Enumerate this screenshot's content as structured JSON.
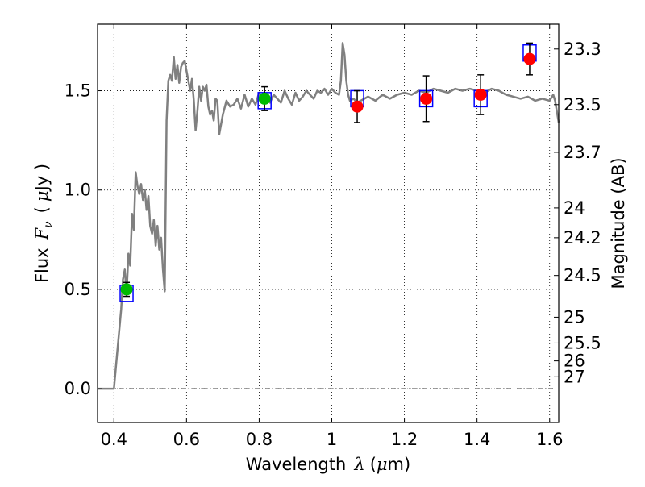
{
  "chart_data": {
    "type": "scatter",
    "xlabel_text": "Wavelength",
    "xlabel_symbol": "λ",
    "xlabel_unit_open": "(",
    "xlabel_unit_mu": "μ",
    "xlabel_unit_rest": "m)",
    "ylabel_text": "Flux",
    "ylabel_symbol": "F",
    "ylabel_sub": "ν",
    "ylabel_unit_open": "(",
    "ylabel_unit_mu": "μ",
    "ylabel_unit_rest": "Jy )",
    "y2label": "Magnitude (AB)",
    "xlim": [
      0.355,
      1.625
    ],
    "ylim": [
      -0.17,
      1.835
    ],
    "grid": true,
    "x_ticks": [
      0.4,
      0.6,
      0.8,
      1.0,
      1.2,
      1.4,
      1.6
    ],
    "x_tick_labels": [
      "0.4",
      "0.6",
      "0.8",
      "1",
      "1.2",
      "1.4",
      "1.6"
    ],
    "y_ticks": [
      0.0,
      0.5,
      1.0,
      1.5
    ],
    "y_tick_labels": [
      "0.0",
      "0.5",
      "1.0",
      "1.5"
    ],
    "y2_ticks": [
      {
        "label": "23.3",
        "flux": 1.71
      },
      {
        "label": "23.5",
        "flux": 1.43
      },
      {
        "label": "23.7",
        "flux": 1.19
      },
      {
        "label": "24",
        "flux": 0.91
      },
      {
        "label": "24.2",
        "flux": 0.76
      },
      {
        "label": "24.5",
        "flux": 0.57
      },
      {
        "label": "25",
        "flux": 0.36
      },
      {
        "label": "25.5",
        "flux": 0.23
      },
      {
        "label": "26",
        "flux": 0.14
      },
      {
        "label": "27",
        "flux": 0.06
      }
    ],
    "zero_line": 0.0,
    "model_color": "#808080",
    "model_spectrum": [
      [
        0.355,
        0.0
      ],
      [
        0.4,
        0.0
      ],
      [
        0.41,
        0.2
      ],
      [
        0.42,
        0.4
      ],
      [
        0.425,
        0.55
      ],
      [
        0.43,
        0.6
      ],
      [
        0.435,
        0.48
      ],
      [
        0.44,
        0.68
      ],
      [
        0.445,
        0.62
      ],
      [
        0.45,
        0.88
      ],
      [
        0.455,
        0.8
      ],
      [
        0.46,
        1.09
      ],
      [
        0.465,
        1.02
      ],
      [
        0.47,
        0.98
      ],
      [
        0.475,
        1.03
      ],
      [
        0.48,
        0.95
      ],
      [
        0.485,
        1.0
      ],
      [
        0.49,
        0.9
      ],
      [
        0.495,
        0.97
      ],
      [
        0.5,
        0.82
      ],
      [
        0.505,
        0.78
      ],
      [
        0.51,
        0.85
      ],
      [
        0.515,
        0.72
      ],
      [
        0.52,
        0.82
      ],
      [
        0.525,
        0.7
      ],
      [
        0.53,
        0.76
      ],
      [
        0.535,
        0.6
      ],
      [
        0.54,
        0.49
      ],
      [
        0.545,
        1.35
      ],
      [
        0.55,
        1.55
      ],
      [
        0.555,
        1.58
      ],
      [
        0.56,
        1.55
      ],
      [
        0.565,
        1.67
      ],
      [
        0.57,
        1.56
      ],
      [
        0.575,
        1.63
      ],
      [
        0.58,
        1.54
      ],
      [
        0.585,
        1.62
      ],
      [
        0.59,
        1.64
      ],
      [
        0.595,
        1.65
      ],
      [
        0.6,
        1.6
      ],
      [
        0.61,
        1.5
      ],
      [
        0.615,
        1.56
      ],
      [
        0.62,
        1.45
      ],
      [
        0.625,
        1.3
      ],
      [
        0.63,
        1.4
      ],
      [
        0.635,
        1.52
      ],
      [
        0.64,
        1.45
      ],
      [
        0.645,
        1.52
      ],
      [
        0.65,
        1.5
      ],
      [
        0.655,
        1.53
      ],
      [
        0.66,
        1.42
      ],
      [
        0.665,
        1.38
      ],
      [
        0.67,
        1.4
      ],
      [
        0.675,
        1.35
      ],
      [
        0.68,
        1.46
      ],
      [
        0.685,
        1.45
      ],
      [
        0.69,
        1.28
      ],
      [
        0.7,
        1.38
      ],
      [
        0.71,
        1.45
      ],
      [
        0.72,
        1.42
      ],
      [
        0.73,
        1.43
      ],
      [
        0.74,
        1.46
      ],
      [
        0.75,
        1.41
      ],
      [
        0.76,
        1.48
      ],
      [
        0.77,
        1.42
      ],
      [
        0.78,
        1.46
      ],
      [
        0.79,
        1.43
      ],
      [
        0.8,
        1.49
      ],
      [
        0.81,
        1.45
      ],
      [
        0.82,
        1.47
      ],
      [
        0.83,
        1.44
      ],
      [
        0.84,
        1.48
      ],
      [
        0.85,
        1.46
      ],
      [
        0.86,
        1.44
      ],
      [
        0.87,
        1.5
      ],
      [
        0.88,
        1.46
      ],
      [
        0.89,
        1.43
      ],
      [
        0.9,
        1.49
      ],
      [
        0.91,
        1.45
      ],
      [
        0.92,
        1.47
      ],
      [
        0.93,
        1.5
      ],
      [
        0.94,
        1.48
      ],
      [
        0.95,
        1.46
      ],
      [
        0.96,
        1.5
      ],
      [
        0.97,
        1.49
      ],
      [
        0.98,
        1.51
      ],
      [
        0.99,
        1.48
      ],
      [
        1.0,
        1.51
      ],
      [
        1.01,
        1.49
      ],
      [
        1.02,
        1.48
      ],
      [
        1.025,
        1.55
      ],
      [
        1.03,
        1.74
      ],
      [
        1.035,
        1.68
      ],
      [
        1.04,
        1.55
      ],
      [
        1.045,
        1.48
      ],
      [
        1.05,
        1.45
      ],
      [
        1.06,
        1.46
      ],
      [
        1.07,
        1.44
      ],
      [
        1.08,
        1.45
      ],
      [
        1.09,
        1.46
      ],
      [
        1.1,
        1.47
      ],
      [
        1.12,
        1.45
      ],
      [
        1.14,
        1.48
      ],
      [
        1.16,
        1.46
      ],
      [
        1.18,
        1.48
      ],
      [
        1.2,
        1.49
      ],
      [
        1.22,
        1.48
      ],
      [
        1.24,
        1.5
      ],
      [
        1.26,
        1.49
      ],
      [
        1.28,
        1.51
      ],
      [
        1.3,
        1.5
      ],
      [
        1.32,
        1.49
      ],
      [
        1.34,
        1.51
      ],
      [
        1.36,
        1.5
      ],
      [
        1.38,
        1.51
      ],
      [
        1.4,
        1.5
      ],
      [
        1.42,
        1.49
      ],
      [
        1.44,
        1.51
      ],
      [
        1.46,
        1.5
      ],
      [
        1.48,
        1.48
      ],
      [
        1.5,
        1.47
      ],
      [
        1.52,
        1.46
      ],
      [
        1.54,
        1.47
      ],
      [
        1.56,
        1.45
      ],
      [
        1.58,
        1.46
      ],
      [
        1.6,
        1.45
      ],
      [
        1.61,
        1.48
      ],
      [
        1.615,
        1.45
      ],
      [
        1.625,
        1.34
      ]
    ],
    "series": [
      {
        "marker": "square",
        "color": "#0000ff",
        "points": [
          {
            "x": 0.435,
            "y": 0.48
          },
          {
            "x": 0.815,
            "y": 1.45
          },
          {
            "x": 1.07,
            "y": 1.46
          },
          {
            "x": 1.26,
            "y": 1.46
          },
          {
            "x": 1.41,
            "y": 1.46
          },
          {
            "x": 1.545,
            "y": 1.69
          }
        ]
      },
      {
        "marker": "circle",
        "color": "#00bb00",
        "points": [
          {
            "x": 0.435,
            "y": 0.5,
            "err": 0.035
          },
          {
            "x": 0.815,
            "y": 1.46,
            "err": 0.06
          }
        ]
      },
      {
        "marker": "circle",
        "color": "#ff0000",
        "points": [
          {
            "x": 1.07,
            "y": 1.42,
            "err": 0.08
          },
          {
            "x": 1.26,
            "y": 1.46,
            "err": 0.115
          },
          {
            "x": 1.41,
            "y": 1.48,
            "err": 0.1
          },
          {
            "x": 1.545,
            "y": 1.66,
            "err": 0.08
          }
        ]
      }
    ]
  }
}
